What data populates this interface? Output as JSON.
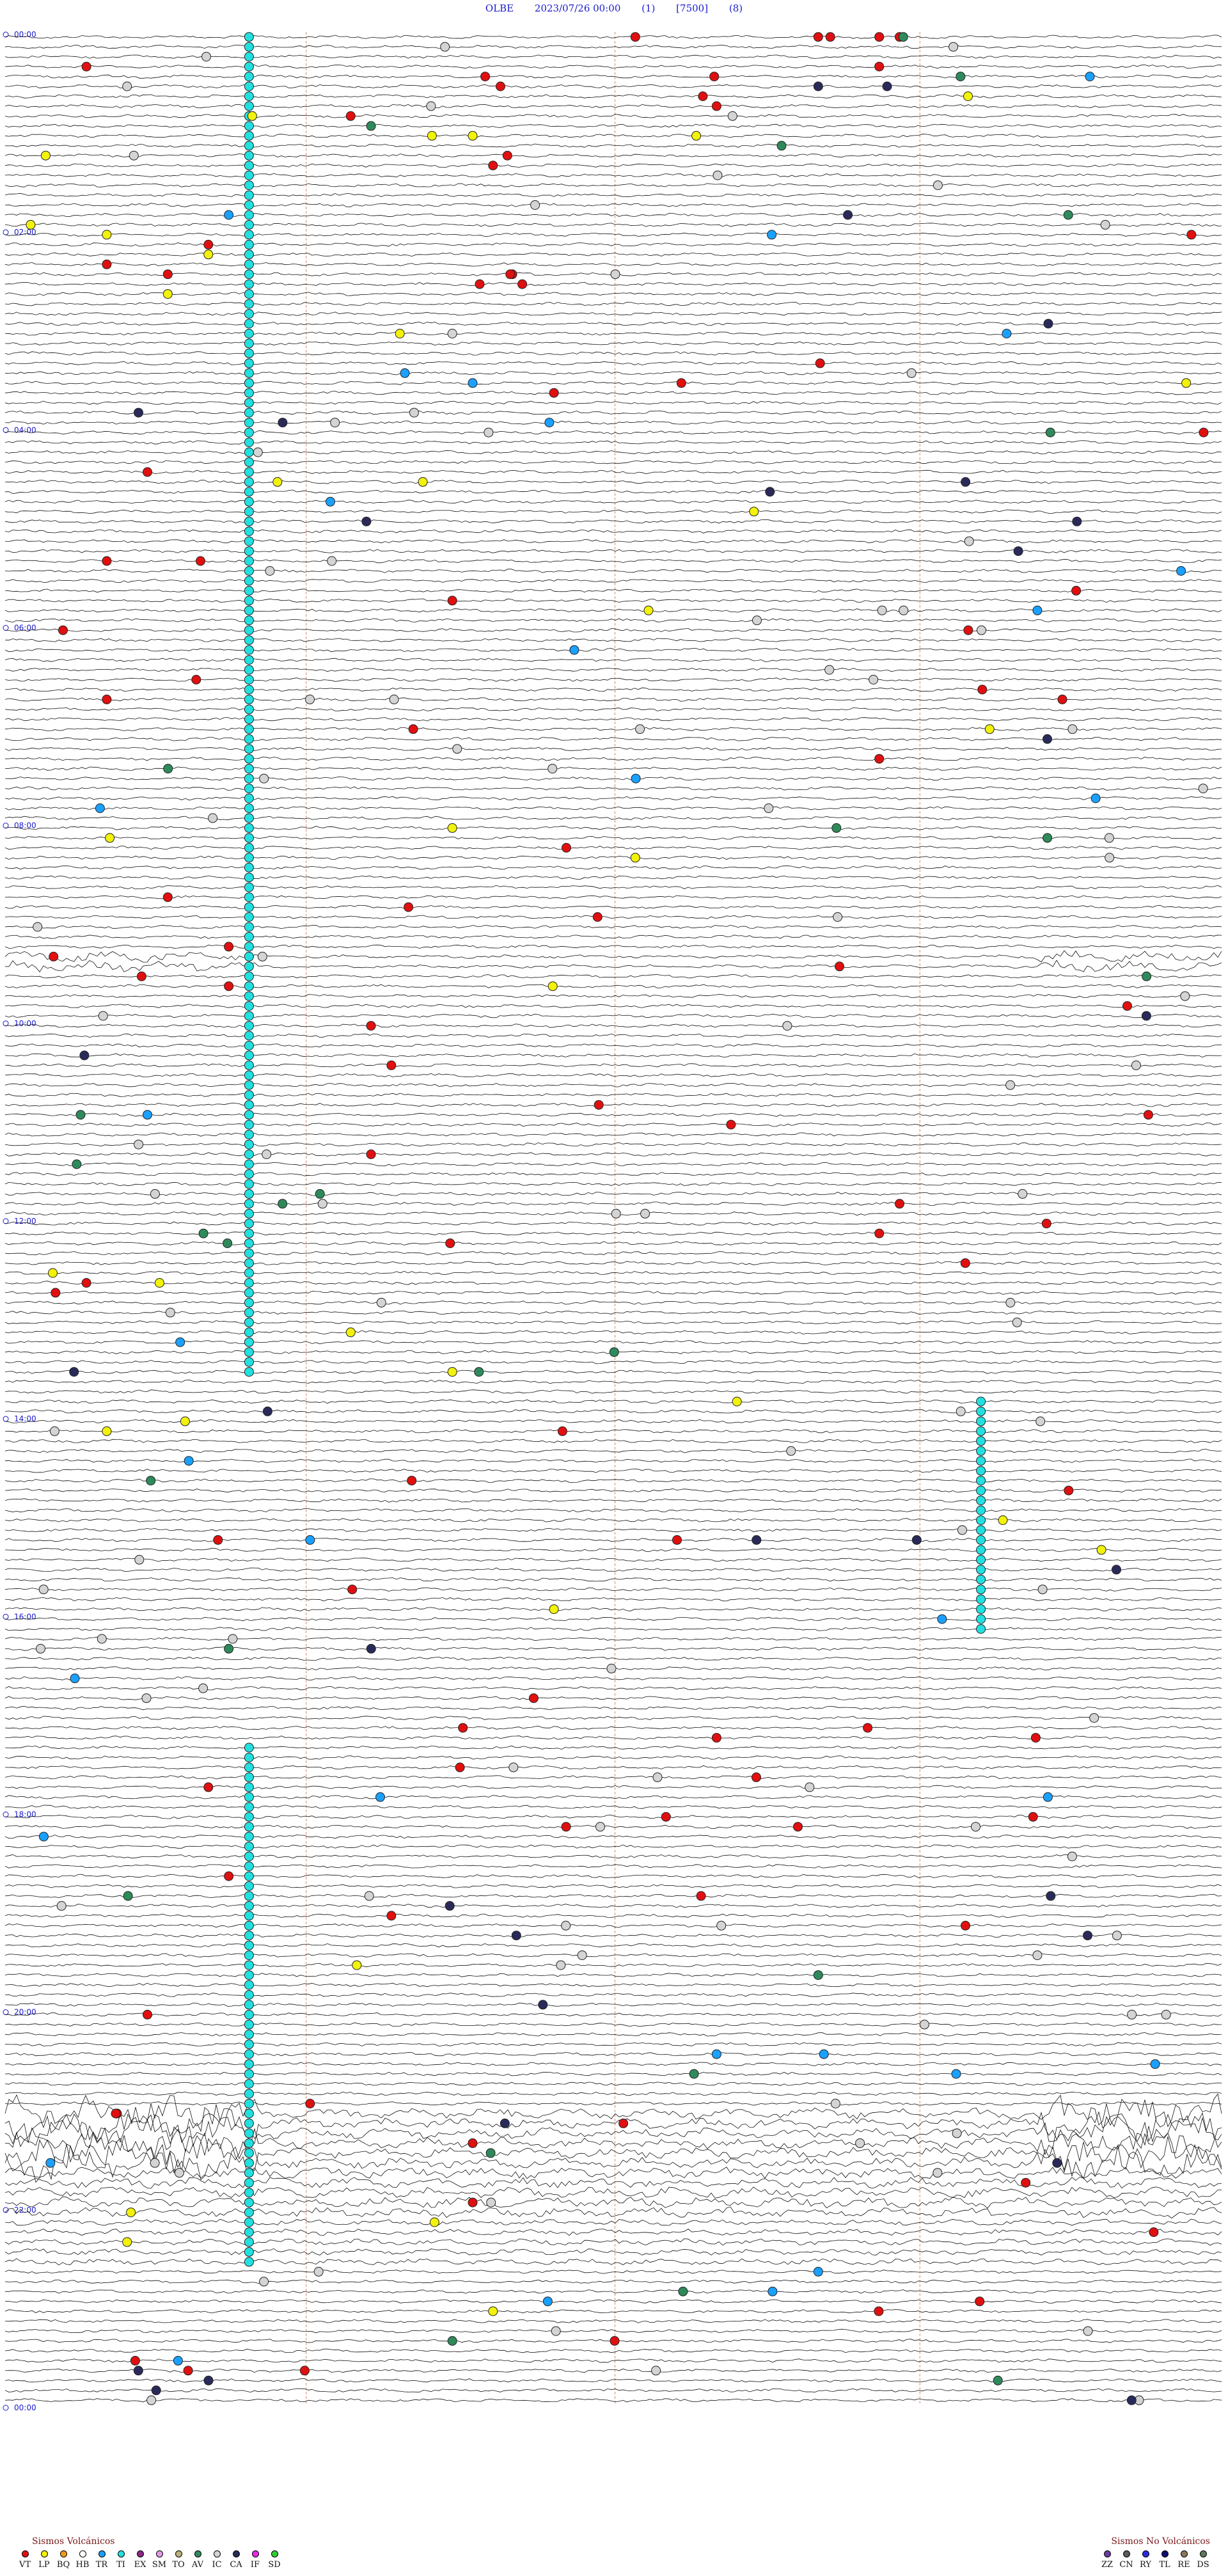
{
  "header": {
    "station": "OLBE",
    "datetime": "2023/07/26 00:00",
    "channel": "(1)",
    "scale": "[7500]",
    "filter": "(8)"
  },
  "chart_data": {
    "type": "helicorder",
    "title": "OLBE  2023/07/26 00:00  (1)  [7500]  (8)",
    "traces_per_hour": 10,
    "hours": 24,
    "hour_labels": [
      "00:00",
      "02:00",
      "04:00",
      "06:00",
      "08:00",
      "10:00",
      "12:00",
      "14:00",
      "16:00",
      "18:00",
      "20:00",
      "22:00",
      "00:00"
    ],
    "minute_markers": [
      "15",
      "30",
      "45"
    ],
    "grid": false,
    "event_markers": [
      {
        "trace": 0,
        "minute": 43,
        "code": "VT"
      },
      {
        "trace": 0,
        "minute": 44,
        "code": "VT"
      },
      {
        "trace": 0,
        "minute": 31,
        "code": "VT"
      },
      {
        "trace": 0,
        "minute": 40,
        "code": "VT"
      },
      {
        "trace": 0,
        "minute": 62,
        "code": "VT"
      },
      {
        "trace": 3,
        "minute": 4,
        "code": "VT"
      },
      {
        "trace": 3,
        "minute": 43,
        "code": "VT"
      },
      {
        "trace": 4,
        "minute": 47,
        "code": "AV"
      },
      {
        "trace": 5,
        "minute": 6,
        "code": "IC"
      },
      {
        "trace": 5,
        "minute": 40,
        "code": "CA"
      },
      {
        "trace": 7,
        "minute": 35,
        "code": "VT"
      },
      {
        "trace": 8,
        "minute": 17,
        "code": "VT"
      },
      {
        "trace": 8,
        "minute": 71,
        "code": "VT"
      },
      {
        "trace": 9,
        "minute": 18,
        "code": "AV"
      },
      {
        "trace": 10,
        "minute": 34,
        "code": "LP"
      },
      {
        "trace": 10,
        "minute": 21,
        "code": "LP"
      },
      {
        "trace": 10,
        "minute": 23,
        "code": "LP"
      },
      {
        "trace": 13,
        "minute": 24,
        "code": "VT"
      },
      {
        "trace": 18,
        "minute": 11,
        "code": "TR"
      },
      {
        "trace": 20,
        "minute": 5,
        "code": "LP"
      },
      {
        "trace": 21,
        "minute": 10,
        "code": "VT"
      },
      {
        "trace": 22,
        "minute": 10,
        "code": "LP"
      },
      {
        "trace": 23,
        "minute": 5,
        "code": "VT"
      },
      {
        "trace": 24,
        "minute": 8,
        "code": "VT"
      },
      {
        "trace": 26,
        "minute": 8,
        "code": "LP"
      },
      {
        "trace": 30,
        "minute": 22,
        "code": "IC"
      },
      {
        "trace": 35,
        "minute": 23,
        "code": "TR"
      },
      {
        "trace": 36,
        "minute": 27,
        "code": "VT"
      },
      {
        "trace": 44,
        "minute": 7,
        "code": "VT"
      },
      {
        "trace": 47,
        "minute": 16,
        "code": "TR"
      },
      {
        "trace": 53,
        "minute": 5,
        "code": "VT"
      },
      {
        "trace": 57,
        "minute": 22,
        "code": "VT"
      },
      {
        "trace": 62,
        "minute": 28,
        "code": "TR"
      },
      {
        "trace": 67,
        "minute": 5,
        "code": "VT"
      },
      {
        "trace": 73,
        "minute": 43,
        "code": "VT"
      },
      {
        "trace": 80,
        "minute": 22,
        "code": "LP"
      },
      {
        "trace": 83,
        "minute": 31,
        "code": "LP"
      },
      {
        "trace": 87,
        "minute": 8,
        "code": "VT"
      },
      {
        "trace": 92,
        "minute": 11,
        "code": "VT"
      },
      {
        "trace": 96,
        "minute": 11,
        "code": "VT"
      },
      {
        "trace": 100,
        "minute": 18,
        "code": "VT"
      },
      {
        "trace": 104,
        "minute": 19,
        "code": "VT"
      },
      {
        "trace": 109,
        "minute": 7,
        "code": "TR"
      },
      {
        "trace": 113,
        "minute": 18,
        "code": "VT"
      },
      {
        "trace": 118,
        "minute": 44,
        "code": "VT"
      },
      {
        "trace": 121,
        "minute": 43,
        "code": "VT"
      },
      {
        "trace": 126,
        "minute": 4,
        "code": "VT"
      },
      {
        "trace": 131,
        "minute": 17,
        "code": "LP"
      },
      {
        "trace": 135,
        "minute": 22,
        "code": "LP"
      },
      {
        "trace": 138,
        "minute": 36,
        "code": "LP"
      },
      {
        "trace": 141,
        "minute": 5,
        "code": "LP"
      },
      {
        "trace": 146,
        "minute": 20,
        "code": "VT"
      },
      {
        "trace": 152,
        "minute": 15,
        "code": "TR"
      },
      {
        "trace": 159,
        "minute": 27,
        "code": "LP"
      },
      {
        "trace": 163,
        "minute": 11,
        "code": "AV"
      },
      {
        "trace": 168,
        "minute": 26,
        "code": "VT"
      },
      {
        "trace": 172,
        "minute": 35,
        "code": "VT"
      },
      {
        "trace": 177,
        "minute": 10,
        "code": "VT"
      },
      {
        "trace": 181,
        "minute": 39,
        "code": "VT"
      },
      {
        "trace": 186,
        "minute": 11,
        "code": "VT"
      },
      {
        "trace": 190,
        "minute": 19,
        "code": "VT"
      },
      {
        "trace": 196,
        "minute": 40,
        "code": "AV"
      },
      {
        "trace": 200,
        "minute": 7,
        "code": "VT"
      },
      {
        "trace": 204,
        "minute": 35,
        "code": "TR"
      },
      {
        "trace": 209,
        "minute": 15,
        "code": "VT"
      },
      {
        "trace": 213,
        "minute": 23,
        "code": "VT"
      },
      {
        "trace": 219,
        "minute": 23,
        "code": "VT"
      },
      {
        "trace": 223,
        "minute": 6,
        "code": "LP"
      },
      {
        "trace": 226,
        "minute": 40,
        "code": "TR"
      },
      {
        "trace": 230,
        "minute": 24,
        "code": "LP"
      },
      {
        "trace": 233,
        "minute": 22,
        "code": "AV"
      },
      {
        "trace": 236,
        "minute": 9,
        "code": "VT"
      }
    ],
    "legend_volcanic": {
      "title": "Sismos Volcánicos",
      "codes": [
        "VT",
        "LP",
        "BQ",
        "HB",
        "TR",
        "TI",
        "EX",
        "SM",
        "TO",
        "AV",
        "IC",
        "CA",
        "IF",
        "SD"
      ],
      "colors": [
        "#e01010",
        "#f2f20a",
        "#f09a1a",
        "#ffffff",
        "#1aa0ff",
        "#22e0e0",
        "#8a2a8a",
        "#e69ae6",
        "#bdb07a",
        "#2e8a5a",
        "#d4d4d4",
        "#2a2a5a",
        "#e62ae6",
        "#33cc33"
      ]
    },
    "legend_nonvolcanic": {
      "title": "Sismos No Volcánicos",
      "codes": [
        "ZZ",
        "CN",
        "RY",
        "TL",
        "RE",
        "DS"
      ],
      "colors": [
        "#6a3aa0",
        "#5a5a5a",
        "#2a2ae0",
        "#101070",
        "#8a7a5a",
        "#5a7a5a"
      ]
    }
  }
}
